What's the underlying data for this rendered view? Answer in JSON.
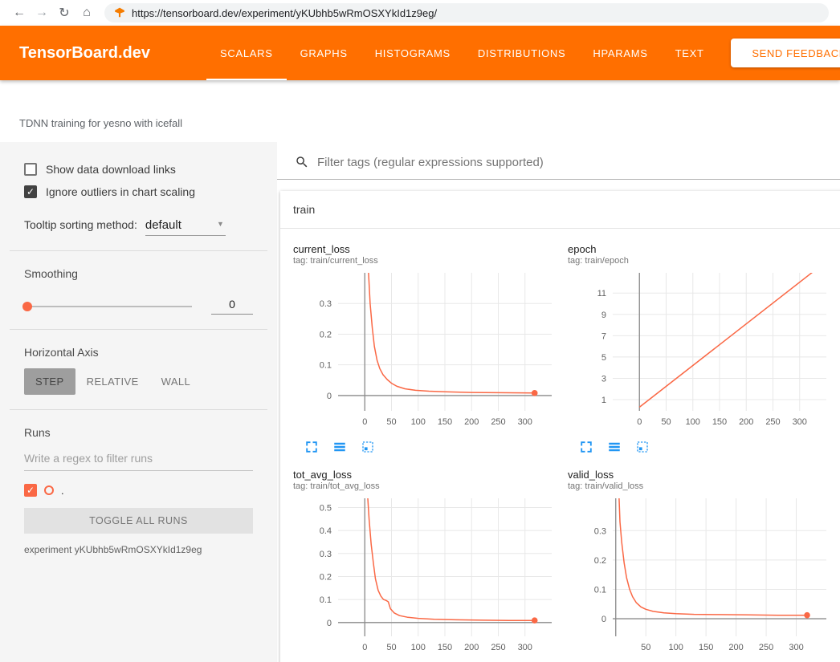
{
  "browser": {
    "url": "https://tensorboard.dev/experiment/yKUbhb5wRmOSXYkId1z9eg/",
    "controls": [
      {
        "name": "back",
        "glyph": "←"
      },
      {
        "name": "forward",
        "glyph": "→"
      },
      {
        "name": "reload",
        "glyph": "↻"
      },
      {
        "name": "home",
        "glyph": "⌂"
      }
    ]
  },
  "header": {
    "logo": "TensorBoard.dev",
    "tabs": [
      {
        "label": "SCALARS",
        "active": true
      },
      {
        "label": "GRAPHS",
        "active": false
      },
      {
        "label": "HISTOGRAMS",
        "active": false
      },
      {
        "label": "DISTRIBUTIONS",
        "active": false
      },
      {
        "label": "HPARAMS",
        "active": false
      },
      {
        "label": "TEXT",
        "active": false
      }
    ],
    "feedback_label": "SEND FEEDBACK"
  },
  "experiment": {
    "title": "TDNN training for yesno with icefall"
  },
  "sidebar": {
    "checkboxes": [
      {
        "label": "Show data download links",
        "checked": false
      },
      {
        "label": "Ignore outliers in chart scaling",
        "checked": true
      }
    ],
    "tooltip_sorting_label": "Tooltip sorting method:",
    "tooltip_sorting_value": "default",
    "smoothing_label": "Smoothing",
    "smoothing_value": "0",
    "horizontal_axis_label": "Horizontal Axis",
    "axis_options": [
      {
        "label": "STEP",
        "selected": true
      },
      {
        "label": "RELATIVE",
        "selected": false
      },
      {
        "label": "WALL",
        "selected": false
      }
    ],
    "runs_label": "Runs",
    "runs_filter_placeholder": "Write a regex to filter runs",
    "run_item_label": ".",
    "toggle_all_label": "TOGGLE ALL RUNS",
    "experiment_id": "experiment yKUbhb5wRmOSXYkId1z9eg"
  },
  "main": {
    "filter_placeholder": "Filter tags (regular expressions supported)",
    "group_label": "train",
    "chart_icons": [
      {
        "name": "expand-chart-icon"
      },
      {
        "name": "view-data-icon"
      },
      {
        "name": "fit-domain-icon"
      }
    ]
  },
  "colors": {
    "header_orange": "#ff6f00",
    "run_color": "#fa6845",
    "icon_blue": "#2196f3",
    "grid_light": "#e8e8e8",
    "grid_dark": "#8a8a8a"
  },
  "chart_data": [
    {
      "type": "line",
      "title": "current_loss",
      "tag": "tag: train/current_loss",
      "xlim": [
        -50,
        350
      ],
      "ylim": [
        -0.05,
        0.4
      ],
      "xticks": [
        0,
        50,
        100,
        150,
        200,
        250,
        300
      ],
      "yticks": [
        0,
        0.1,
        0.2,
        0.3
      ],
      "series": [
        {
          "name": ".",
          "end_dot": true,
          "points": [
            [
              3,
              0.55
            ],
            [
              7,
              0.4
            ],
            [
              10,
              0.3
            ],
            [
              14,
              0.22
            ],
            [
              18,
              0.16
            ],
            [
              23,
              0.115
            ],
            [
              28,
              0.088
            ],
            [
              34,
              0.068
            ],
            [
              42,
              0.052
            ],
            [
              50,
              0.04
            ],
            [
              60,
              0.03
            ],
            [
              75,
              0.022
            ],
            [
              95,
              0.017
            ],
            [
              120,
              0.014
            ],
            [
              150,
              0.012
            ],
            [
              200,
              0.01
            ],
            [
              250,
              0.009
            ],
            [
              318,
              0.008
            ]
          ]
        }
      ]
    },
    {
      "type": "line",
      "title": "epoch",
      "tag": "tag: train/epoch",
      "xlim": [
        -50,
        350
      ],
      "ylim": [
        -0.05,
        12.9
      ],
      "xticks": [
        0,
        50,
        100,
        150,
        200,
        250,
        300
      ],
      "yticks": [
        1,
        3,
        5,
        7,
        9,
        11
      ],
      "series": [
        {
          "name": ".",
          "end_dot": false,
          "points": [
            [
              0,
              0.3
            ],
            [
              325,
              13.0
            ]
          ]
        }
      ]
    },
    {
      "type": "line",
      "title": "tot_avg_loss",
      "tag": "tag: train/tot_avg_loss",
      "xlim": [
        -50,
        350
      ],
      "ylim": [
        -0.06,
        0.54
      ],
      "xticks": [
        0,
        50,
        100,
        150,
        200,
        250,
        300
      ],
      "yticks": [
        0,
        0.1,
        0.2,
        0.3,
        0.4,
        0.5
      ],
      "series": [
        {
          "name": ".",
          "end_dot": true,
          "points": [
            [
              4,
              0.6
            ],
            [
              8,
              0.45
            ],
            [
              12,
              0.34
            ],
            [
              16,
              0.26
            ],
            [
              20,
              0.19
            ],
            [
              25,
              0.14
            ],
            [
              30,
              0.115
            ],
            [
              35,
              0.1
            ],
            [
              40,
              0.096
            ],
            [
              44,
              0.09
            ],
            [
              48,
              0.06
            ],
            [
              55,
              0.042
            ],
            [
              65,
              0.03
            ],
            [
              80,
              0.023
            ],
            [
              100,
              0.018
            ],
            [
              130,
              0.014
            ],
            [
              170,
              0.012
            ],
            [
              220,
              0.01
            ],
            [
              270,
              0.009
            ],
            [
              318,
              0.009
            ]
          ]
        }
      ]
    },
    {
      "type": "line",
      "title": "valid_loss",
      "tag": "tag: train/valid_loss",
      "xlim": [
        -5,
        350
      ],
      "ylim": [
        -0.06,
        0.41
      ],
      "xticks": [
        50,
        100,
        150,
        200,
        250,
        300
      ],
      "yticks": [
        0,
        0.1,
        0.2,
        0.3
      ],
      "series": [
        {
          "name": ".",
          "end_dot": true,
          "points": [
            [
              4,
              0.5
            ],
            [
              7,
              0.33
            ],
            [
              10,
              0.26
            ],
            [
              14,
              0.19
            ],
            [
              18,
              0.14
            ],
            [
              23,
              0.1
            ],
            [
              28,
              0.075
            ],
            [
              34,
              0.055
            ],
            [
              42,
              0.04
            ],
            [
              50,
              0.032
            ],
            [
              62,
              0.025
            ],
            [
              80,
              0.02
            ],
            [
              100,
              0.017
            ],
            [
              130,
              0.015
            ],
            [
              170,
              0.014
            ],
            [
              220,
              0.013
            ],
            [
              270,
              0.012
            ],
            [
              318,
              0.012
            ]
          ]
        }
      ]
    }
  ]
}
